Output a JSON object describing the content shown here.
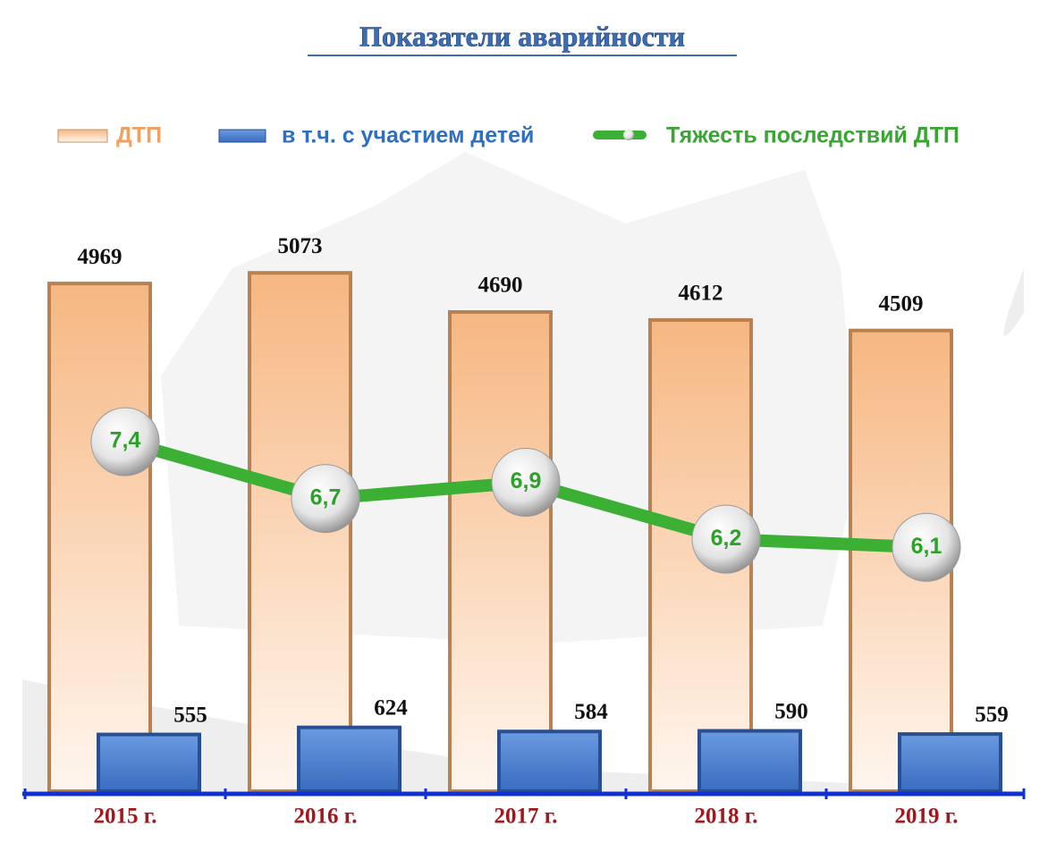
{
  "chart_data": {
    "type": "bar",
    "title": "Показатели аварийности",
    "categories": [
      "2015 г.",
      "2016 г.",
      "2017 г.",
      "2018 г.",
      "2019 г."
    ],
    "series": [
      {
        "name": "ДТП",
        "color": "#f7c294",
        "values": [
          4969,
          5073,
          4690,
          4612,
          4509
        ]
      },
      {
        "name": "в т.ч. с участием детей",
        "color": "#4a80d4",
        "values": [
          555,
          624,
          584,
          590,
          559
        ]
      },
      {
        "name": "Тяжесть последствий ДТП",
        "color": "#3cb034",
        "type": "line",
        "axis": "y2",
        "values": [
          7.4,
          6.7,
          6.9,
          6.2,
          6.1
        ],
        "value_labels": [
          "7,4",
          "6,7",
          "6,9",
          "6,2",
          "6,1"
        ]
      }
    ],
    "ylim": [
      0,
      5250
    ],
    "y2lim": [
      3.1,
      9.7
    ],
    "grid": false,
    "legend": "top"
  }
}
